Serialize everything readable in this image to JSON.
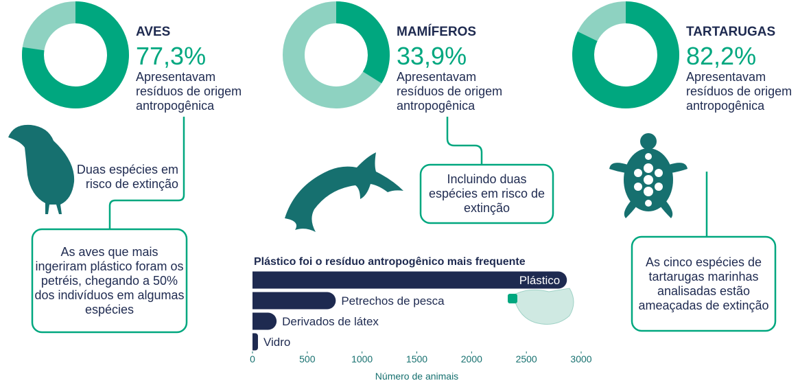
{
  "chart_data": [
    {
      "type": "donut",
      "title": "AVES",
      "values": [
        77.3
      ],
      "value_labels": [
        "77,3%"
      ],
      "subtitle": "Apresentavam resíduos de origem antropogênica",
      "color": "#00a77f",
      "track_color": "#8ed2c1",
      "annotations": [
        "Duas espécies em risco de extinção",
        "As aves que mais ingeriram plástico foram os petréis, chegando a 50% dos indivíduos em algumas espécies"
      ]
    },
    {
      "type": "donut",
      "title": "MAMÍFEROS",
      "values": [
        33.9
      ],
      "value_labels": [
        "33,9%"
      ],
      "subtitle": "Apresentavam resíduos de origem antropogênica",
      "color": "#00a77f",
      "track_color": "#8ed2c1",
      "annotations": [
        "Incluindo duas espécies em risco de extinção"
      ]
    },
    {
      "type": "donut",
      "title": "TARTARUGAS",
      "values": [
        82.2
      ],
      "value_labels": [
        "82,2%"
      ],
      "subtitle": "Apresentavam resíduos de origem antropogênica",
      "color": "#00a77f",
      "track_color": "#8ed2c1",
      "annotations": [
        "As cinco espécies de tartarugas marinhas analisadas estão ameaçadas de extinção"
      ]
    },
    {
      "type": "hbar",
      "title": "Plástico foi o resíduo antropogênico mais frequente",
      "categories": [
        "Plástico",
        "Petrechos de pesca",
        "Derivados de látex",
        "Vidro"
      ],
      "values": [
        2870,
        760,
        220,
        50
      ],
      "color": "#1e2a50",
      "xlim": [
        0,
        3000
      ],
      "xticks": [
        0,
        500,
        1000,
        1500,
        2000,
        2500,
        3000
      ],
      "xlabel": "Número de animais"
    }
  ]
}
